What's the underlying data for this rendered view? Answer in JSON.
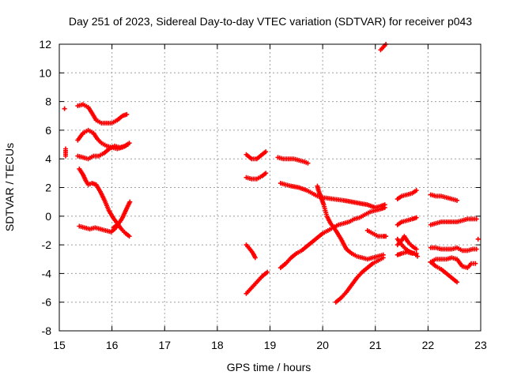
{
  "chart_data": {
    "type": "scatter",
    "title": "Day 251 of 2023, Sidereal Day-to-day VTEC variation (SDTVAR) for receiver p043",
    "xlabel": "GPS time / hours",
    "ylabel": "SDTVAR / TECUs",
    "xlim": [
      15,
      23
    ],
    "ylim": [
      -8,
      12
    ],
    "x_ticks": [
      15,
      16,
      17,
      18,
      19,
      20,
      21,
      22,
      23
    ],
    "y_ticks": [
      -8,
      -6,
      -4,
      -2,
      0,
      2,
      4,
      6,
      8,
      10,
      12
    ],
    "x_tick_labels": [
      "15",
      "16",
      "17",
      "18",
      "19",
      "20",
      "21",
      "22",
      "23"
    ],
    "y_tick_labels": [
      "-8",
      "-6",
      "-4",
      "-2",
      "0",
      "2",
      "4",
      "6",
      "8",
      "10",
      "12"
    ],
    "grid": true,
    "legend": "none",
    "marker": "plus",
    "color": "#ff0000",
    "series": [
      {
        "points": [
          [
            15.1,
            7.5
          ]
        ]
      },
      {
        "points": [
          [
            15.12,
            4.7
          ],
          [
            15.12,
            4.2
          ]
        ]
      },
      {
        "points": [
          [
            15.35,
            7.7
          ],
          [
            15.45,
            7.8
          ],
          [
            15.55,
            7.6
          ],
          [
            15.62,
            7.2
          ],
          [
            15.7,
            6.7
          ],
          [
            15.8,
            6.5
          ],
          [
            15.9,
            6.5
          ],
          [
            16.0,
            6.5
          ],
          [
            16.1,
            6.7
          ],
          [
            16.2,
            7.0
          ],
          [
            16.28,
            7.1
          ]
        ]
      },
      {
        "points": [
          [
            15.35,
            5.3
          ],
          [
            15.45,
            5.8
          ],
          [
            15.55,
            6.0
          ],
          [
            15.65,
            5.8
          ],
          [
            15.72,
            5.4
          ],
          [
            15.8,
            5.1
          ],
          [
            15.9,
            4.9
          ],
          [
            16.0,
            4.8
          ],
          [
            16.1,
            4.7
          ],
          [
            16.2,
            4.8
          ],
          [
            16.3,
            5.0
          ]
        ]
      },
      {
        "points": [
          [
            15.35,
            4.2
          ],
          [
            15.45,
            4.1
          ],
          [
            15.55,
            4.0
          ],
          [
            15.65,
            4.2
          ],
          [
            15.75,
            4.2
          ],
          [
            15.85,
            4.4
          ],
          [
            15.95,
            4.7
          ],
          [
            16.05,
            4.9
          ],
          [
            16.15,
            4.8
          ],
          [
            16.25,
            4.9
          ],
          [
            16.33,
            5.1
          ]
        ]
      },
      {
        "points": [
          [
            15.38,
            3.3
          ],
          [
            15.45,
            2.9
          ],
          [
            15.5,
            2.5
          ],
          [
            15.55,
            2.2
          ],
          [
            15.62,
            2.3
          ],
          [
            15.7,
            2.2
          ],
          [
            15.78,
            1.7
          ],
          [
            15.86,
            1.1
          ],
          [
            15.94,
            0.4
          ],
          [
            16.02,
            -0.1
          ],
          [
            16.1,
            -0.5
          ],
          [
            16.18,
            -0.9
          ],
          [
            16.26,
            -1.2
          ],
          [
            16.33,
            -1.4
          ]
        ]
      },
      {
        "points": [
          [
            16.03,
            -0.8
          ],
          [
            16.1,
            -0.6
          ],
          [
            16.15,
            -0.4
          ],
          [
            16.2,
            -0.1
          ],
          [
            16.25,
            0.3
          ],
          [
            16.3,
            0.7
          ],
          [
            16.34,
            1.0
          ]
        ]
      },
      {
        "points": [
          [
            15.38,
            -0.7
          ],
          [
            15.48,
            -0.8
          ],
          [
            15.58,
            -0.9
          ],
          [
            15.68,
            -0.8
          ],
          [
            15.78,
            -0.9
          ],
          [
            15.88,
            -1.0
          ],
          [
            15.98,
            -1.1
          ],
          [
            16.05,
            -0.9
          ],
          [
            16.12,
            -0.6
          ]
        ]
      },
      {
        "points": [
          [
            18.55,
            4.3
          ],
          [
            18.65,
            4.0
          ],
          [
            18.75,
            4.0
          ],
          [
            18.85,
            4.3
          ],
          [
            18.92,
            4.5
          ]
        ]
      },
      {
        "points": [
          [
            18.55,
            2.7
          ],
          [
            18.65,
            2.6
          ],
          [
            18.75,
            2.6
          ],
          [
            18.85,
            2.8
          ],
          [
            18.92,
            3.0
          ]
        ]
      },
      {
        "points": [
          [
            18.55,
            -2.0
          ],
          [
            18.62,
            -2.3
          ],
          [
            18.68,
            -2.6
          ],
          [
            18.72,
            -2.9
          ]
        ]
      },
      {
        "points": [
          [
            18.55,
            -5.4
          ],
          [
            18.65,
            -5.0
          ],
          [
            18.75,
            -4.6
          ],
          [
            18.85,
            -4.2
          ],
          [
            18.95,
            -3.9
          ]
        ]
      },
      {
        "points": [
          [
            19.15,
            4.1
          ],
          [
            19.25,
            4.0
          ],
          [
            19.35,
            4.0
          ],
          [
            19.45,
            4.0
          ],
          [
            19.55,
            3.9
          ],
          [
            19.65,
            3.8
          ],
          [
            19.72,
            3.7
          ]
        ]
      },
      {
        "points": [
          [
            19.2,
            2.3
          ],
          [
            19.3,
            2.2
          ],
          [
            19.4,
            2.1
          ],
          [
            19.55,
            2.0
          ],
          [
            19.7,
            1.8
          ],
          [
            19.8,
            1.6
          ],
          [
            19.9,
            1.4
          ],
          [
            20.0,
            1.3
          ],
          [
            20.2,
            1.2
          ],
          [
            20.4,
            1.1
          ],
          [
            20.55,
            1.0
          ],
          [
            20.7,
            0.9
          ],
          [
            20.85,
            0.8
          ],
          [
            21.0,
            0.6
          ],
          [
            21.1,
            0.7
          ],
          [
            21.18,
            0.8
          ]
        ]
      },
      {
        "points": [
          [
            19.9,
            2.1
          ],
          [
            19.92,
            1.8
          ],
          [
            19.95,
            1.5
          ],
          [
            19.98,
            1.2
          ],
          [
            20.02,
            0.8
          ],
          [
            20.05,
            0.4
          ],
          [
            20.08,
            0.0
          ],
          [
            20.15,
            -0.5
          ],
          [
            20.25,
            -1.0
          ],
          [
            20.35,
            -1.6
          ],
          [
            20.45,
            -2.3
          ],
          [
            20.55,
            -2.6
          ],
          [
            20.65,
            -2.8
          ],
          [
            20.75,
            -2.9
          ],
          [
            20.85,
            -3.0
          ],
          [
            20.95,
            -2.9
          ],
          [
            21.05,
            -2.8
          ],
          [
            21.15,
            -2.7
          ]
        ]
      },
      {
        "points": [
          [
            19.2,
            -3.6
          ],
          [
            19.3,
            -3.3
          ],
          [
            19.4,
            -2.9
          ],
          [
            19.5,
            -2.6
          ],
          [
            19.6,
            -2.4
          ],
          [
            19.7,
            -2.1
          ],
          [
            19.8,
            -1.8
          ],
          [
            19.9,
            -1.5
          ],
          [
            20.0,
            -1.2
          ],
          [
            20.1,
            -1.0
          ],
          [
            20.2,
            -0.8
          ],
          [
            20.3,
            -0.6
          ],
          [
            20.4,
            -0.5
          ],
          [
            20.5,
            -0.4
          ],
          [
            20.6,
            -0.2
          ],
          [
            20.7,
            -0.1
          ],
          [
            20.8,
            0.1
          ],
          [
            20.9,
            0.3
          ],
          [
            21.0,
            0.4
          ],
          [
            21.1,
            0.5
          ],
          [
            21.18,
            0.6
          ]
        ]
      },
      {
        "points": [
          [
            20.25,
            -6.0
          ],
          [
            20.35,
            -5.7
          ],
          [
            20.45,
            -5.3
          ],
          [
            20.55,
            -4.8
          ],
          [
            20.65,
            -4.3
          ],
          [
            20.75,
            -3.9
          ],
          [
            20.85,
            -3.6
          ],
          [
            20.95,
            -3.3
          ],
          [
            21.05,
            -3.1
          ],
          [
            21.15,
            -2.9
          ]
        ]
      },
      {
        "points": [
          [
            20.85,
            -1.0
          ],
          [
            20.95,
            -1.2
          ],
          [
            21.05,
            -1.4
          ],
          [
            21.15,
            -1.4
          ],
          [
            21.2,
            -1.4
          ]
        ]
      },
      {
        "points": [
          [
            21.1,
            11.6
          ],
          [
            21.15,
            11.8
          ],
          [
            21.2,
            12.0
          ]
        ]
      },
      {
        "points": [
          [
            21.42,
            1.2
          ],
          [
            21.5,
            1.4
          ],
          [
            21.6,
            1.5
          ],
          [
            21.7,
            1.6
          ],
          [
            21.78,
            1.8
          ]
        ]
      },
      {
        "points": [
          [
            21.42,
            -0.6
          ],
          [
            21.5,
            -0.4
          ],
          [
            21.6,
            -0.3
          ],
          [
            21.7,
            -0.2
          ],
          [
            21.78,
            -0.1
          ]
        ]
      },
      {
        "points": [
          [
            21.42,
            -2.0
          ],
          [
            21.5,
            -1.7
          ],
          [
            21.55,
            -1.4
          ],
          [
            21.62,
            -1.8
          ],
          [
            21.7,
            -2.1
          ],
          [
            21.78,
            -2.3
          ]
        ]
      },
      {
        "points": [
          [
            21.42,
            -2.7
          ],
          [
            21.5,
            -2.6
          ],
          [
            21.6,
            -2.5
          ],
          [
            21.7,
            -2.6
          ],
          [
            21.78,
            -2.6
          ]
        ]
      },
      {
        "points": [
          [
            21.42,
            -1.6
          ],
          [
            21.5,
            -2.0
          ],
          [
            21.58,
            -2.3
          ],
          [
            21.66,
            -2.5
          ],
          [
            21.74,
            -2.6
          ],
          [
            21.8,
            -2.8
          ]
        ]
      },
      {
        "points": [
          [
            22.05,
            1.5
          ],
          [
            22.15,
            1.4
          ],
          [
            22.25,
            1.4
          ],
          [
            22.35,
            1.3
          ],
          [
            22.45,
            1.2
          ],
          [
            22.55,
            1.1
          ]
        ]
      },
      {
        "points": [
          [
            22.05,
            -0.6
          ],
          [
            22.15,
            -0.5
          ],
          [
            22.25,
            -0.4
          ],
          [
            22.35,
            -0.4
          ],
          [
            22.45,
            -0.4
          ],
          [
            22.55,
            -0.4
          ],
          [
            22.65,
            -0.3
          ],
          [
            22.75,
            -0.2
          ],
          [
            22.85,
            -0.2
          ],
          [
            22.92,
            -0.2
          ]
        ]
      },
      {
        "points": [
          [
            22.05,
            -2.2
          ],
          [
            22.15,
            -2.2
          ],
          [
            22.25,
            -2.3
          ],
          [
            22.35,
            -2.3
          ],
          [
            22.45,
            -2.3
          ],
          [
            22.55,
            -2.2
          ],
          [
            22.65,
            -2.4
          ],
          [
            22.75,
            -2.4
          ],
          [
            22.85,
            -2.3
          ],
          [
            22.92,
            -2.3
          ]
        ]
      },
      {
        "points": [
          [
            22.05,
            -3.2
          ],
          [
            22.15,
            -3.0
          ],
          [
            22.25,
            -3.0
          ],
          [
            22.35,
            -3.0
          ],
          [
            22.45,
            -2.9
          ],
          [
            22.55,
            -3.0
          ],
          [
            22.65,
            -3.5
          ],
          [
            22.75,
            -3.6
          ],
          [
            22.82,
            -3.3
          ],
          [
            22.9,
            -3.3
          ]
        ]
      },
      {
        "points": [
          [
            22.05,
            -3.2
          ],
          [
            22.15,
            -3.5
          ],
          [
            22.25,
            -3.7
          ],
          [
            22.35,
            -4.0
          ],
          [
            22.45,
            -4.3
          ],
          [
            22.55,
            -4.6
          ]
        ]
      },
      {
        "points": [
          [
            22.95,
            -1.6
          ]
        ]
      }
    ]
  }
}
